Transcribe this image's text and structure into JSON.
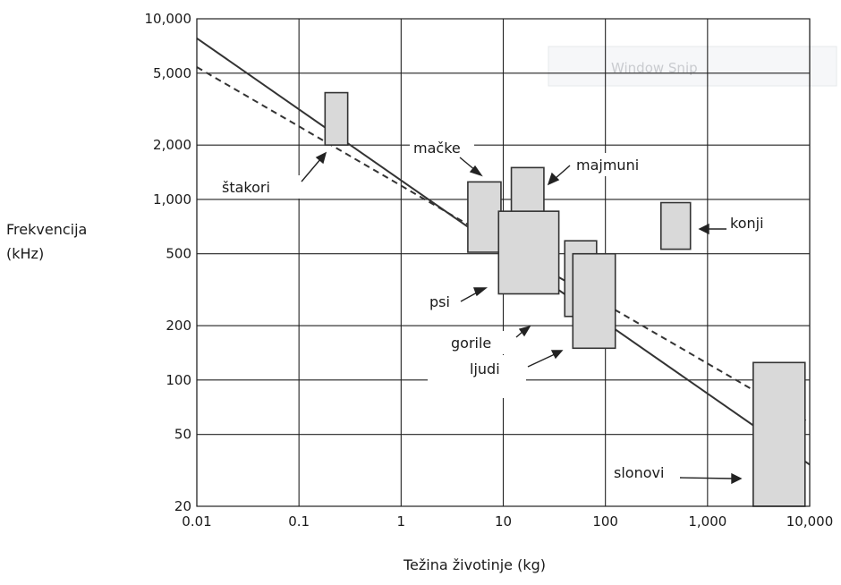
{
  "chart_data": {
    "type": "scatter",
    "xlabel": "Težina životinje (kg)",
    "ylabel": [
      "Frekvencija",
      "(kHz)"
    ],
    "x_scale": "log",
    "y_scale": "log",
    "xlim": [
      0.01,
      10000
    ],
    "ylim": [
      20,
      10000
    ],
    "x_ticks": [
      {
        "value": 0.01,
        "label": "0.01"
      },
      {
        "value": 0.1,
        "label": "0.1"
      },
      {
        "value": 1,
        "label": "1"
      },
      {
        "value": 10,
        "label": "10"
      },
      {
        "value": 100,
        "label": "100"
      },
      {
        "value": 1000,
        "label": "1,000"
      },
      {
        "value": 10000,
        "label": "10,000"
      }
    ],
    "y_ticks": [
      {
        "value": 20,
        "label": "20"
      },
      {
        "value": 50,
        "label": "50"
      },
      {
        "value": 100,
        "label": "100"
      },
      {
        "value": 200,
        "label": "200"
      },
      {
        "value": 500,
        "label": "500"
      },
      {
        "value": 1000,
        "label": "1,000"
      },
      {
        "value": 2000,
        "label": "2,000"
      },
      {
        "value": 5000,
        "label": "5,000"
      },
      {
        "value": 10000,
        "label": "10,000"
      }
    ],
    "grid": true,
    "lines": [
      {
        "style": "solid",
        "color": "#333333",
        "points": [
          [
            0.01,
            7800
          ],
          [
            10000,
            34
          ]
        ]
      },
      {
        "style": "dashed",
        "color": "#333333",
        "points": [
          [
            0.01,
            5400
          ],
          [
            10000,
            58
          ]
        ]
      }
    ],
    "boxes": [
      {
        "label": "štakori",
        "x_range": [
          0.18,
          0.3
        ],
        "y_range": [
          2000,
          3900
        ]
      },
      {
        "label": "mačke",
        "x_range": [
          4.5,
          9.5
        ],
        "y_range": [
          510,
          1250
        ]
      },
      {
        "label": "majmuni",
        "x_range": [
          12,
          25
        ],
        "y_range": [
          740,
          1500
        ]
      },
      {
        "label": "psi",
        "x_range": [
          9,
          35
        ],
        "y_range": [
          300,
          860
        ]
      },
      {
        "label": "gorile",
        "x_range": [
          40,
          82
        ],
        "y_range": [
          225,
          590
        ]
      },
      {
        "label": "ljudi",
        "x_range": [
          48,
          125
        ],
        "y_range": [
          150,
          500
        ]
      },
      {
        "label": "konji",
        "x_range": [
          350,
          680
        ],
        "y_range": [
          530,
          960
        ]
      },
      {
        "label": "slonovi",
        "x_range": [
          2800,
          9000
        ],
        "y_range": [
          20,
          125
        ]
      }
    ],
    "annotations": [
      {
        "text": "štakori"
      },
      {
        "text": "mačke"
      },
      {
        "text": "majmuni"
      },
      {
        "text": "psi"
      },
      {
        "text": "gorile"
      },
      {
        "text": "ljudi"
      },
      {
        "text": "konji"
      },
      {
        "text": "slonovi"
      }
    ],
    "colors": {
      "box_fill": "#d9d9d9",
      "box_stroke": "#333333",
      "grid": "#222222",
      "line": "#333333"
    }
  },
  "overlay": {
    "window_snip": "Window Snip"
  }
}
